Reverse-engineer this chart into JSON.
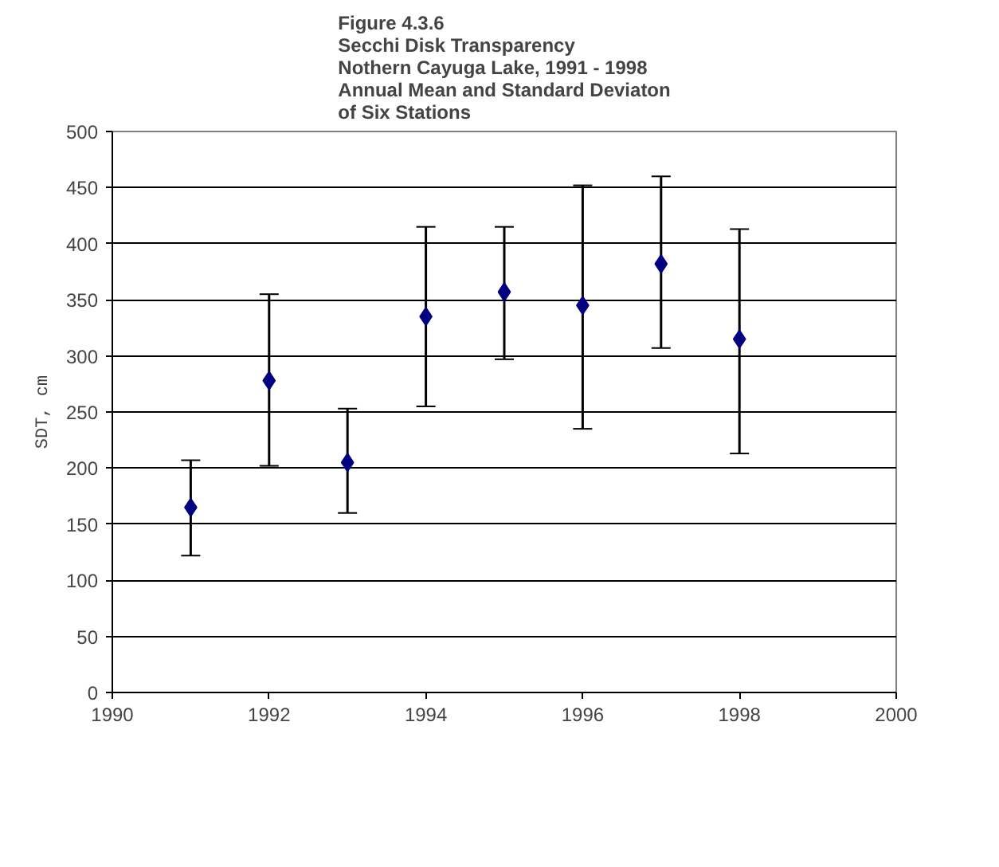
{
  "chart_data": {
    "type": "scatter",
    "title": "Figure 4.3.6\nSecchi Disk Transparency\nNothern Cayuga Lake, 1991 - 1998\nAnnual Mean and Standard Deviaton\nof Six Stations",
    "ylabel": "SDT, cm",
    "x": [
      1991,
      1992,
      1993,
      1994,
      1995,
      1996,
      1997,
      1998
    ],
    "values": [
      165,
      278,
      205,
      335,
      357,
      345,
      382,
      315
    ],
    "errors": [
      [
        122,
        207
      ],
      [
        202,
        355
      ],
      [
        160,
        253
      ],
      [
        255,
        415
      ],
      [
        297,
        415
      ],
      [
        235,
        452
      ],
      [
        307,
        460
      ],
      [
        213,
        413
      ]
    ],
    "color": "#000080",
    "marker": "diamond",
    "xlim": [
      1990,
      2000
    ],
    "xticks": [
      1990,
      1992,
      1994,
      1996,
      1998,
      2000
    ],
    "ylim": [
      0,
      500
    ],
    "yticks": [
      0,
      50,
      100,
      150,
      200,
      250,
      300,
      350,
      400,
      450,
      500
    ],
    "grid": "y"
  }
}
